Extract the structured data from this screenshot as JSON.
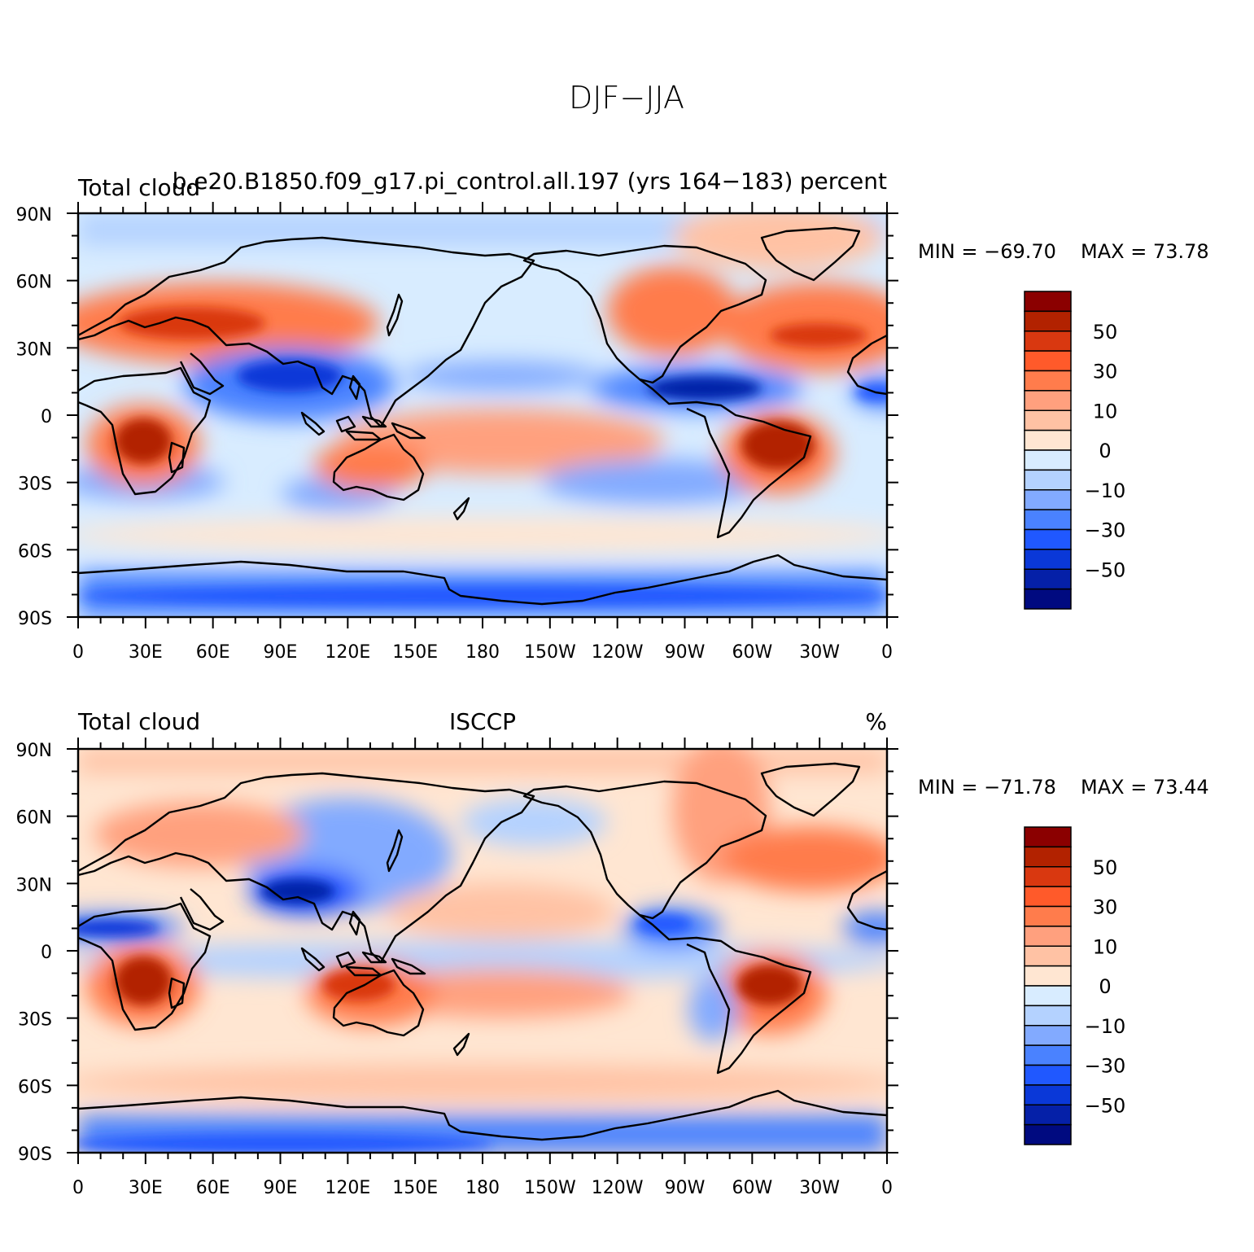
{
  "figure": {
    "title": "DJF−JJA"
  },
  "axes": {
    "lat_labels": [
      "90N",
      "60N",
      "30N",
      "0",
      "30S",
      "60S",
      "90S"
    ],
    "lon_labels": [
      "0",
      "30E",
      "60E",
      "90E",
      "120E",
      "150E",
      "180",
      "150W",
      "120W",
      "90W",
      "60W",
      "30W",
      "0"
    ]
  },
  "colorbar": {
    "labels": [
      "50",
      "30",
      "10",
      "0",
      "−10",
      "−30",
      "−50"
    ],
    "colors": [
      "#8b0000",
      "#b22200",
      "#d93810",
      "#ff5a2a",
      "#ff7c4c",
      "#ffa07e",
      "#ffc2a4",
      "#ffe6d2",
      "#d8ecff",
      "#b4d2ff",
      "#82aaff",
      "#4a82ff",
      "#2058ff",
      "#0a38d8",
      "#0520a8",
      "#000a80"
    ]
  },
  "panels": [
    {
      "left_label": "Total cloud",
      "center_label": "b.e20.B1850.f09_g17.pi_control.all.197 (yrs 164−183)",
      "right_label": "percent",
      "min_label": "MIN = −69.70",
      "max_label": "MAX =   73.78"
    },
    {
      "left_label": "Total cloud",
      "center_label": "ISCCP",
      "right_label": "%",
      "min_label": "MIN = −71.78",
      "max_label": "MAX =   73.44"
    }
  ]
}
